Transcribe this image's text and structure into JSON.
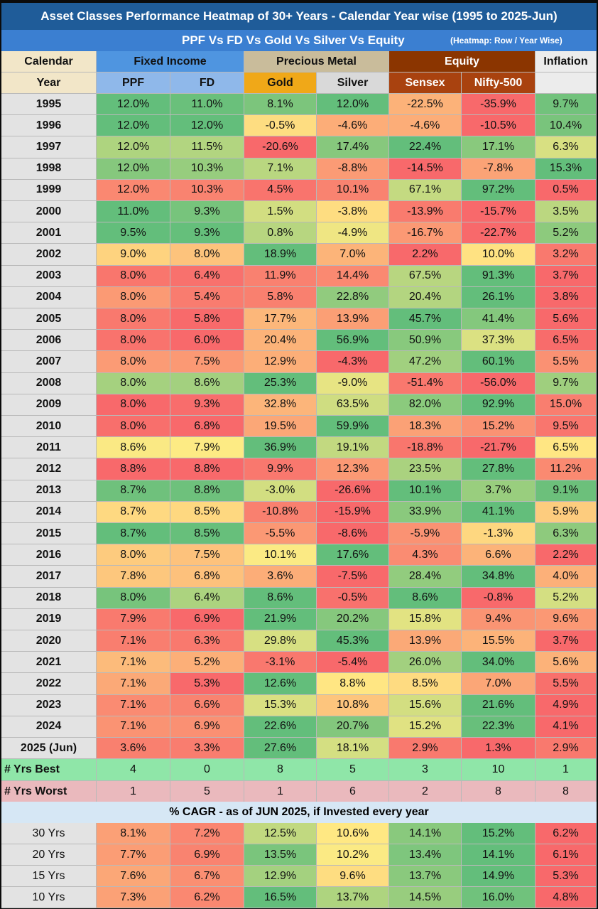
{
  "title": "Asset Classes Performance Heatmap of 30+ Years - Calendar Year wise (1995 to 2025-Jun)",
  "subtitle": "PPF Vs FD Vs Gold Vs Silver Vs Equity",
  "subtitle_note": "(Heatmap: Row / Year Wise)",
  "header1": {
    "col0": "Calendar",
    "fixed": "Fixed Income",
    "metal": "Precious Metal",
    "equity": "Equity",
    "inflation": "Inflation"
  },
  "header2": {
    "col0": "Year",
    "ppf": "PPF",
    "fd": "FD",
    "gold": "Gold",
    "silver": "Silver",
    "sensex": "Sensex",
    "nifty": "Nifty-500",
    "inflation": ""
  },
  "chart_data": {
    "type": "heatmap",
    "title": "Asset Classes Performance Heatmap of 30+ Years - Calendar Year wise (1995 to 2025-Jun)",
    "columns": [
      "PPF",
      "FD",
      "Gold",
      "Silver",
      "Sensex",
      "Nifty-500",
      "Inflation"
    ],
    "colors": {
      "high": "#63be7b",
      "mid": "#ffeb84",
      "low": "#f8696b"
    },
    "rows": [
      {
        "year": "1995",
        "values": [
          "12.0%",
          "11.0%",
          "8.1%",
          "12.0%",
          "-22.5%",
          "-35.9%",
          "9.7%"
        ]
      },
      {
        "year": "1996",
        "values": [
          "12.0%",
          "12.0%",
          "-0.5%",
          "-4.6%",
          "-4.6%",
          "-10.5%",
          "10.4%"
        ]
      },
      {
        "year": "1997",
        "values": [
          "12.0%",
          "11.5%",
          "-20.6%",
          "17.4%",
          "22.4%",
          "17.1%",
          "6.3%"
        ]
      },
      {
        "year": "1998",
        "values": [
          "12.0%",
          "10.3%",
          "7.1%",
          "-8.8%",
          "-14.5%",
          "-7.8%",
          "15.3%"
        ]
      },
      {
        "year": "1999",
        "values": [
          "12.0%",
          "10.3%",
          "4.5%",
          "10.1%",
          "67.1%",
          "97.2%",
          "0.5%"
        ]
      },
      {
        "year": "2000",
        "values": [
          "11.0%",
          "9.3%",
          "1.5%",
          "-3.8%",
          "-13.9%",
          "-15.7%",
          "3.5%"
        ]
      },
      {
        "year": "2001",
        "values": [
          "9.5%",
          "9.3%",
          "0.8%",
          "-4.9%",
          "-16.7%",
          "-22.7%",
          "5.2%"
        ]
      },
      {
        "year": "2002",
        "values": [
          "9.0%",
          "8.0%",
          "18.9%",
          "7.0%",
          "2.2%",
          "10.0%",
          "3.2%"
        ]
      },
      {
        "year": "2003",
        "values": [
          "8.0%",
          "6.4%",
          "11.9%",
          "14.4%",
          "67.5%",
          "91.3%",
          "3.7%"
        ]
      },
      {
        "year": "2004",
        "values": [
          "8.0%",
          "5.4%",
          "5.8%",
          "22.8%",
          "20.4%",
          "26.1%",
          "3.8%"
        ]
      },
      {
        "year": "2005",
        "values": [
          "8.0%",
          "5.8%",
          "17.7%",
          "13.9%",
          "45.7%",
          "41.4%",
          "5.6%"
        ]
      },
      {
        "year": "2006",
        "values": [
          "8.0%",
          "6.0%",
          "20.4%",
          "56.9%",
          "50.9%",
          "37.3%",
          "6.5%"
        ]
      },
      {
        "year": "2007",
        "values": [
          "8.0%",
          "7.5%",
          "12.9%",
          "-4.3%",
          "47.2%",
          "60.1%",
          "5.5%"
        ]
      },
      {
        "year": "2008",
        "values": [
          "8.0%",
          "8.6%",
          "25.3%",
          "-9.0%",
          "-51.4%",
          "-56.0%",
          "9.7%"
        ]
      },
      {
        "year": "2009",
        "values": [
          "8.0%",
          "9.3%",
          "32.8%",
          "63.5%",
          "82.0%",
          "92.9%",
          "15.0%"
        ]
      },
      {
        "year": "2010",
        "values": [
          "8.0%",
          "6.8%",
          "19.5%",
          "59.9%",
          "18.3%",
          "15.2%",
          "9.5%"
        ]
      },
      {
        "year": "2011",
        "values": [
          "8.6%",
          "7.9%",
          "36.9%",
          "19.1%",
          "-18.8%",
          "-21.7%",
          "6.5%"
        ]
      },
      {
        "year": "2012",
        "values": [
          "8.8%",
          "8.8%",
          "9.9%",
          "12.3%",
          "23.5%",
          "27.8%",
          "11.2%"
        ]
      },
      {
        "year": "2013",
        "values": [
          "8.7%",
          "8.8%",
          "-3.0%",
          "-26.6%",
          "10.1%",
          "3.7%",
          "9.1%"
        ]
      },
      {
        "year": "2014",
        "values": [
          "8.7%",
          "8.5%",
          "-10.8%",
          "-15.9%",
          "33.9%",
          "41.1%",
          "5.9%"
        ]
      },
      {
        "year": "2015",
        "values": [
          "8.7%",
          "8.5%",
          "-5.5%",
          "-8.6%",
          "-5.9%",
          "-1.3%",
          "6.3%"
        ]
      },
      {
        "year": "2016",
        "values": [
          "8.0%",
          "7.5%",
          "10.1%",
          "17.6%",
          "4.3%",
          "6.6%",
          "2.2%"
        ]
      },
      {
        "year": "2017",
        "values": [
          "7.8%",
          "6.8%",
          "3.6%",
          "-7.5%",
          "28.4%",
          "34.8%",
          "4.0%"
        ]
      },
      {
        "year": "2018",
        "values": [
          "8.0%",
          "6.4%",
          "8.6%",
          "-0.5%",
          "8.6%",
          "-0.8%",
          "5.2%"
        ]
      },
      {
        "year": "2019",
        "values": [
          "7.9%",
          "6.9%",
          "21.9%",
          "20.2%",
          "15.8%",
          "9.4%",
          "9.6%"
        ]
      },
      {
        "year": "2020",
        "values": [
          "7.1%",
          "6.3%",
          "29.8%",
          "45.3%",
          "13.9%",
          "15.5%",
          "3.7%"
        ]
      },
      {
        "year": "2021",
        "values": [
          "7.1%",
          "5.2%",
          "-3.1%",
          "-5.4%",
          "26.0%",
          "34.0%",
          "5.6%"
        ]
      },
      {
        "year": "2022",
        "values": [
          "7.1%",
          "5.3%",
          "12.6%",
          "8.8%",
          "8.5%",
          "7.0%",
          "5.5%"
        ]
      },
      {
        "year": "2023",
        "values": [
          "7.1%",
          "6.6%",
          "15.3%",
          "10.8%",
          "15.6%",
          "21.6%",
          "4.9%"
        ]
      },
      {
        "year": "2024",
        "values": [
          "7.1%",
          "6.9%",
          "22.6%",
          "20.7%",
          "15.2%",
          "22.3%",
          "4.1%"
        ]
      },
      {
        "year": "2025 (Jun)",
        "values": [
          "3.6%",
          "3.3%",
          "27.6%",
          "18.1%",
          "2.9%",
          "1.3%",
          "2.9%"
        ]
      }
    ],
    "summary": [
      {
        "label": "# Yrs Best",
        "values": [
          "4",
          "0",
          "8",
          "5",
          "3",
          "10",
          "1"
        ]
      },
      {
        "label": "# Yrs Worst",
        "values": [
          "1",
          "5",
          "1",
          "6",
          "2",
          "8",
          "8"
        ]
      }
    ],
    "cagr_title": "% CAGR - as of JUN 2025, if Invested every year",
    "cagr": [
      {
        "label": "30 Yrs",
        "values": [
          "8.1%",
          "7.2%",
          "12.5%",
          "10.6%",
          "14.1%",
          "15.2%",
          "6.2%"
        ]
      },
      {
        "label": "20 Yrs",
        "values": [
          "7.7%",
          "6.9%",
          "13.5%",
          "10.2%",
          "13.4%",
          "14.1%",
          "6.1%"
        ]
      },
      {
        "label": "15 Yrs",
        "values": [
          "7.6%",
          "6.7%",
          "12.9%",
          "9.6%",
          "13.7%",
          "14.9%",
          "5.3%"
        ]
      },
      {
        "label": "10 Yrs",
        "values": [
          "7.3%",
          "6.2%",
          "16.5%",
          "13.7%",
          "14.5%",
          "16.0%",
          "4.8%"
        ]
      }
    ]
  }
}
